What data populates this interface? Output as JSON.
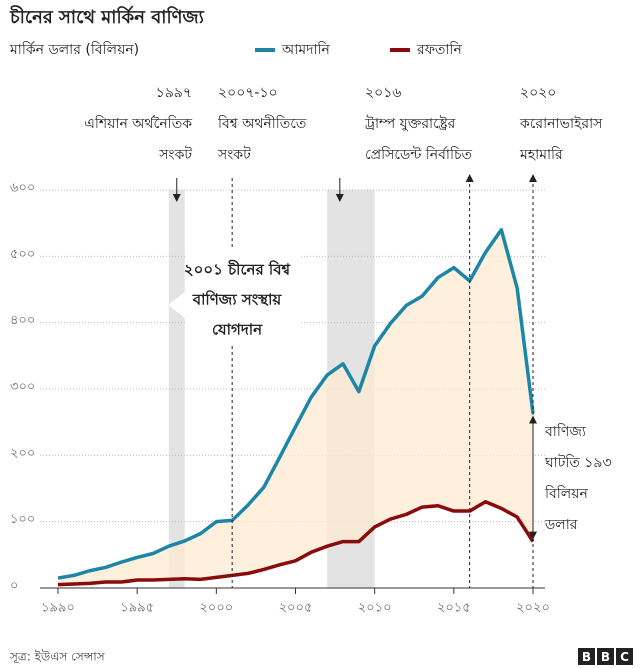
{
  "chart_data": {
    "type": "line",
    "title": "চীনের সাথে মার্কিন বাণিজ্য",
    "y_label": "মার্কিন ডলার (বিলিয়ন)",
    "source": "সূত্র: ইউএস সেন্সাস",
    "logo": [
      "B",
      "B",
      "C"
    ],
    "x": [
      1990,
      1991,
      1992,
      1993,
      1994,
      1995,
      1996,
      1997,
      1998,
      1999,
      2000,
      2001,
      2002,
      2003,
      2004,
      2005,
      2006,
      2007,
      2008,
      2009,
      2010,
      2011,
      2012,
      2013,
      2014,
      2015,
      2016,
      2017,
      2018,
      2019,
      2020
    ],
    "series": [
      {
        "name": "আমদানি",
        "color": "#1b86a8",
        "values": [
          15,
          19,
          26,
          31,
          39,
          46,
          52,
          63,
          71,
          82,
          100,
          102,
          125,
          152,
          197,
          243,
          288,
          321,
          338,
          296,
          365,
          399,
          426,
          440,
          468,
          483,
          463,
          506,
          540,
          452,
          263
        ]
      },
      {
        "name": "রফতানি",
        "color": "#8a0b0b",
        "values": [
          5,
          6,
          7,
          9,
          9,
          12,
          12,
          13,
          14,
          13,
          16,
          19,
          22,
          28,
          35,
          41,
          54,
          63,
          70,
          70,
          92,
          104,
          111,
          122,
          124,
          116,
          116,
          130,
          120,
          107,
          70
        ]
      }
    ],
    "fill_between_color": "#fdebd0",
    "shaded_ranges": [
      {
        "start": 1997,
        "end": 1998
      },
      {
        "start": 2007,
        "end": 2010
      }
    ],
    "shade_color": "#e3e3e3",
    "xlim": [
      1990,
      2020
    ],
    "ylim": [
      0,
      600
    ],
    "xticks": [
      {
        "value": 1990,
        "label": "১৯৯০"
      },
      {
        "value": 1995,
        "label": "১৯৯৫"
      },
      {
        "value": 2000,
        "label": "২০০০"
      },
      {
        "value": 2005,
        "label": "২০০৫"
      },
      {
        "value": 2010,
        "label": "২০১০"
      },
      {
        "value": 2015,
        "label": "২০১৫"
      },
      {
        "value": 2020,
        "label": "২০২০"
      }
    ],
    "yticks": [
      {
        "value": 0,
        "label": "০"
      },
      {
        "value": 100,
        "label": "১০০"
      },
      {
        "value": 200,
        "label": "২০০"
      },
      {
        "value": 300,
        "label": "৩০০"
      },
      {
        "value": 400,
        "label": "৪০০"
      },
      {
        "value": 500,
        "label": "৫০০"
      },
      {
        "value": 600,
        "label": "৬০০"
      }
    ],
    "grid": true,
    "annotations": [
      {
        "x": 1997.5,
        "lines": [
          "১৯৯৭",
          "এশিয়ান অর্থনৈতিক",
          "সংকট"
        ]
      },
      {
        "x": 2007.8,
        "lines": [
          "২০০৭-১০",
          "বিশ্ব অথনীতিতে",
          "সংকট"
        ]
      },
      {
        "x": 2016,
        "lines": [
          "২০১৬",
          "ট্রাম্প যুক্তরাষ্ট্রের",
          "প্রেসিডেন্ট নির্বাচিত"
        ]
      },
      {
        "x": 2020,
        "lines": [
          "২০২০",
          "করোনাভাইরাস",
          "মহামারি"
        ]
      }
    ],
    "wto_annotation": {
      "x": 2001,
      "lines": [
        "২০০১ চীনের বিশ্ব",
        "বাণিজ্য সংস্থায়",
        "যোগদান"
      ]
    },
    "deficit_annotation": {
      "lines": [
        "বাণিজ্য",
        "ঘাটতি ১৯৩",
        "বিলিয়ন",
        "ডলার"
      ]
    }
  }
}
